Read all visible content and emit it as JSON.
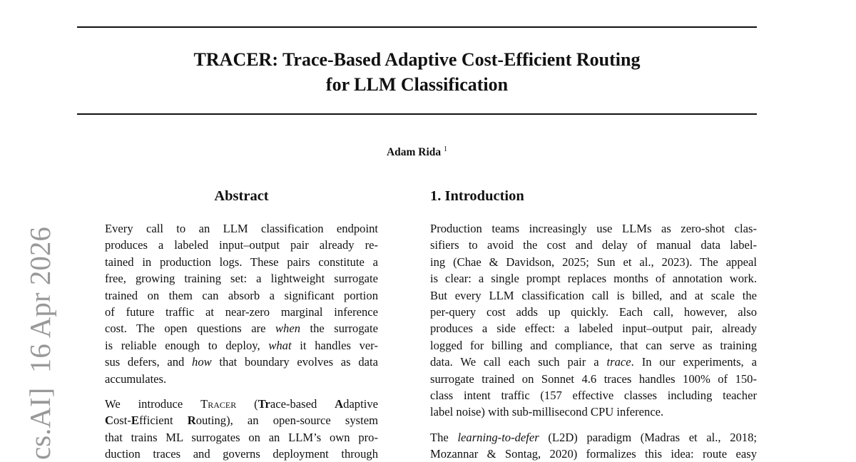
{
  "arxiv_stamp": "cs.AI]  16 Apr 2026",
  "title": [
    "TRACER: Trace-Based Adaptive Cost-Efficient Routing",
    "for LLM Classification"
  ],
  "author": {
    "name": "Adam Rida",
    "affiliation_mark": "1"
  },
  "abstract": {
    "heading": "Abstract",
    "paragraphs": [
      [
        [
          "Every call to an LLM classification endpoint"
        ],
        [
          "produces a labeled input–output pair already re-"
        ],
        [
          "tained in production logs. These pairs constitute a"
        ],
        [
          "free, growing training set: a lightweight surrogate"
        ],
        [
          "trained on them can absorb a significant portion"
        ],
        [
          "of future traffic at near-zero marginal inference"
        ],
        [
          "cost. The open questions are ",
          {
            "i": "when"
          },
          " the surrogate"
        ],
        [
          "is reliable enough to deploy, ",
          {
            "i": "what"
          },
          " it handles ver-"
        ],
        [
          "sus defers, and ",
          {
            "i": "how"
          },
          " that boundary evolves as data"
        ],
        [
          "accumulates."
        ]
      ],
      [
        [
          "We introduce ",
          {
            "sc": "Tracer"
          },
          " (",
          {
            "b": "Tr"
          },
          "ace-based ",
          {
            "b": "A"
          },
          "daptive"
        ],
        [
          {
            "b": "C"
          },
          "ost-",
          {
            "b": "E"
          },
          "fficient ",
          {
            "b": "R"
          },
          "outing), an open-source system"
        ],
        [
          "that trains ML surrogates on an LLM’s own pro-"
        ],
        [
          "duction traces and governs deployment through"
        ]
      ]
    ]
  },
  "introduction": {
    "heading": "1. Introduction",
    "paragraphs": [
      [
        [
          "Production teams increasingly use LLMs as zero-shot clas-"
        ],
        [
          "sifiers to avoid the cost and delay of manual data label-"
        ],
        [
          "ing (Chae & Davidson, 2025; Sun et al., 2023). The appeal"
        ],
        [
          "is clear: a single prompt replaces months of annotation work."
        ],
        [
          "But every LLM classification call is billed, and at scale the"
        ],
        [
          "per-query cost adds up quickly.  Each call, however, also"
        ],
        [
          "produces a side effect: a labeled input–output pair, already"
        ],
        [
          "logged for billing and compliance, that can serve as training"
        ],
        [
          "data. We call each such pair a ",
          {
            "i": "trace"
          },
          ". In our experiments, a"
        ],
        [
          "surrogate trained on Sonnet 4.6 traces handles 100% of 150-"
        ],
        [
          "class intent traffic (157 effective classes including teacher"
        ],
        [
          "label noise) with sub-millisecond CPU inference."
        ]
      ],
      [
        [
          "The ",
          {
            "i": "learning-to-defer"
          },
          " (L2D) paradigm (Madras et al., 2018;"
        ],
        [
          "Mozannar & Sontag, 2020) formalizes this idea: route easy"
        ]
      ]
    ]
  }
}
